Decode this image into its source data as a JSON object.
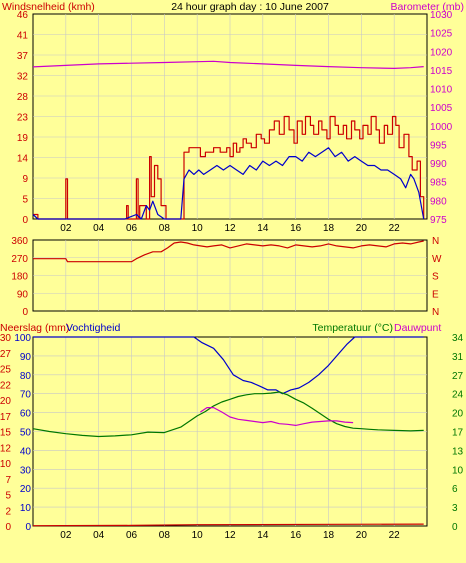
{
  "colors": {
    "bg": "#ffff99",
    "frame": "#000000",
    "grid": "#c8c8c8",
    "red": "#cc0000",
    "magenta": "#cc00cc",
    "blue": "#0000cc",
    "green": "#007700"
  },
  "chart_data": [
    {
      "type": "line",
      "title": "24 hour graph day : 10 June 2007",
      "left_axis_label": "Windsnelheid (kmh)",
      "right_axis_label": "Barometer (mb)",
      "x_ticks": [
        "02",
        "04",
        "06",
        "08",
        "10",
        "12",
        "14",
        "16",
        "18",
        "20",
        "22"
      ],
      "x_range": [
        0,
        24
      ],
      "left_range": [
        0,
        46
      ],
      "left_ticks": [
        "0",
        "5",
        "9",
        "14",
        "19",
        "23",
        "28",
        "32",
        "37",
        "41",
        "46"
      ],
      "right_range": [
        975,
        1030
      ],
      "right_ticks": [
        "975",
        "980",
        "985",
        "990",
        "995",
        "1000",
        "1005",
        "1010",
        "1015",
        "1020",
        "1025",
        "1030"
      ],
      "series": [
        {
          "axis": "left",
          "style": "step",
          "x": [
            0,
            0.3,
            1.9,
            2.0,
            2.1,
            5.6,
            5.7,
            5.8,
            6.1,
            6.3,
            6.4,
            6.5,
            6.9,
            7.1,
            7.2,
            7.4,
            7.6,
            7.8,
            8.1,
            8.6,
            9.0,
            9.2,
            9.5,
            10.0,
            10.2,
            10.5,
            11.0,
            11.4,
            11.8,
            12.0,
            12.2,
            12.4,
            12.6,
            12.8,
            13.0,
            13.3,
            13.6,
            13.9,
            14.1,
            14.4,
            14.7,
            15.0,
            15.3,
            15.6,
            15.9,
            16.1,
            16.4,
            16.6,
            16.9,
            17.1,
            17.4,
            17.6,
            17.9,
            18.1,
            18.4,
            18.6,
            18.9,
            19.1,
            19.4,
            19.6,
            19.9,
            20.1,
            20.4,
            20.6,
            20.9,
            21.1,
            21.4,
            21.6,
            21.9,
            22.1,
            22.3,
            22.6,
            22.9,
            23.1,
            23.4,
            23.6,
            23.8
          ],
          "y": [
            1,
            0,
            0,
            9,
            0,
            0,
            3,
            0,
            0,
            9,
            0,
            3,
            0,
            14,
            5,
            12,
            9,
            3,
            0,
            0,
            0,
            15,
            16,
            16,
            14,
            15,
            16,
            15,
            16,
            14,
            17,
            15,
            16,
            18,
            17,
            16,
            19,
            18,
            17,
            20,
            22,
            19,
            23,
            20,
            17,
            22,
            19,
            23,
            21,
            19,
            22,
            20,
            18,
            23,
            21,
            19,
            21,
            18,
            22,
            20,
            18,
            21,
            19,
            23,
            20,
            17,
            21,
            19,
            23,
            21,
            16,
            19,
            14,
            11,
            13,
            5,
            0
          ]
        },
        {
          "axis": "left",
          "style": "line",
          "x": [
            0,
            0.3,
            5.6,
            6.3,
            6.6,
            6.9,
            7.1,
            7.3,
            7.6,
            8.0,
            8.7,
            9.0,
            9.2,
            9.5,
            9.8,
            10.1,
            10.4,
            10.8,
            11.2,
            11.6,
            12.0,
            12.4,
            12.8,
            13.2,
            13.6,
            14.0,
            14.4,
            14.8,
            15.2,
            15.6,
            16.0,
            16.4,
            16.8,
            17.2,
            17.6,
            18.0,
            18.4,
            18.8,
            19.2,
            19.6,
            20.0,
            20.4,
            20.8,
            21.2,
            21.6,
            22.0,
            22.4,
            22.7,
            23.0,
            23.2,
            23.5,
            23.8
          ],
          "y": [
            1,
            0,
            0,
            1,
            0,
            3,
            2,
            4,
            1,
            0,
            0,
            0,
            9,
            11,
            10,
            11,
            10,
            11,
            12,
            11,
            12,
            11,
            10,
            12,
            11,
            13,
            12,
            13,
            12,
            14,
            14,
            13,
            15,
            14,
            15,
            16,
            14,
            15,
            13,
            14,
            13,
            12,
            12,
            11,
            11,
            10,
            9,
            7,
            10,
            9,
            6,
            0
          ]
        },
        {
          "axis": "right",
          "style": "line",
          "x": [
            0,
            2,
            4,
            6,
            8,
            10,
            11,
            12,
            14,
            16,
            18,
            20,
            22,
            23,
            23.8
          ],
          "y": [
            1015.8,
            1016.2,
            1016.6,
            1016.8,
            1017.0,
            1017.2,
            1017.3,
            1017.0,
            1016.6,
            1016.2,
            1015.9,
            1015.6,
            1015.4,
            1015.6,
            1015.9
          ]
        }
      ]
    },
    {
      "type": "line",
      "title": "",
      "left_range": [
        0,
        360
      ],
      "left_ticks": [
        "0",
        "90",
        "180",
        "270",
        "360"
      ],
      "right_ticks": [
        "N",
        "E",
        "S",
        "W",
        "N"
      ],
      "series": [
        {
          "axis": "left",
          "style": "line",
          "x": [
            0,
            2.0,
            2.1,
            4.0,
            5.0,
            6.0,
            6.3,
            6.8,
            7.3,
            7.8,
            8.2,
            8.6,
            9.0,
            9.4,
            9.8,
            10.2,
            10.6,
            11.0,
            11.5,
            12.0,
            12.5,
            13.0,
            13.5,
            14.0,
            14.5,
            15.0,
            15.5,
            16.0,
            16.5,
            17.0,
            17.5,
            18.0,
            18.5,
            19.0,
            19.5,
            20.0,
            20.5,
            21.0,
            21.5,
            22.0,
            22.5,
            23.0,
            23.5,
            23.8
          ],
          "y": [
            265,
            265,
            250,
            250,
            250,
            250,
            265,
            285,
            300,
            300,
            320,
            345,
            350,
            345,
            335,
            330,
            325,
            330,
            335,
            320,
            330,
            340,
            335,
            330,
            335,
            330,
            320,
            335,
            330,
            325,
            330,
            340,
            330,
            325,
            320,
            330,
            335,
            330,
            325,
            340,
            345,
            340,
            350,
            355
          ]
        }
      ]
    },
    {
      "type": "line",
      "title": "",
      "left_axis_label_1": "Neerslag (mm)",
      "left_axis_label_2": "Vochtigheid",
      "right_axis_label_1": "Temperatuur (°C)",
      "right_axis_label_2": "Dauwpunt",
      "x_ticks": [
        "02",
        "04",
        "06",
        "08",
        "10",
        "12",
        "14",
        "16",
        "18",
        "20",
        "22"
      ],
      "left_outer_range": [
        0,
        30
      ],
      "left_outer_ticks": [
        "0",
        "2",
        "5",
        "7",
        "10",
        "12",
        "15",
        "17",
        "20",
        "22",
        "25",
        "27",
        "30"
      ],
      "left_inner_range": [
        0,
        100
      ],
      "left_inner_ticks": [
        "0",
        "10",
        "20",
        "30",
        "40",
        "50",
        "60",
        "70",
        "80",
        "90",
        "100"
      ],
      "right_range": [
        0,
        34
      ],
      "right_ticks": [
        "0",
        "3",
        "6",
        "10",
        "13",
        "17",
        "20",
        "24",
        "27",
        "31",
        "34"
      ],
      "series": [
        {
          "axis": "humidity",
          "style": "line",
          "x": [
            0,
            9.8,
            10.3,
            11.0,
            11.6,
            12.2,
            12.8,
            13.3,
            13.8,
            14.3,
            14.8,
            15.2,
            15.7,
            16.2,
            16.8,
            17.4,
            18.0,
            18.6,
            19.1,
            19.6,
            21.0,
            22.0,
            23.0,
            23.8
          ],
          "y": [
            100,
            100,
            97,
            94,
            88,
            80,
            77,
            76,
            74,
            72,
            72,
            70,
            72,
            73,
            76,
            80,
            85,
            91,
            96,
            100,
            100,
            100,
            100,
            100
          ]
        },
        {
          "axis": "temp",
          "style": "line",
          "x": [
            0,
            1,
            2,
            3,
            4,
            5,
            6,
            7,
            8,
            9,
            9.5,
            10,
            10.5,
            11,
            11.5,
            12,
            12.5,
            13,
            13.5,
            14,
            14.5,
            15,
            15.5,
            16,
            16.5,
            17,
            17.5,
            18,
            18.5,
            19,
            19.5,
            20,
            20.5,
            21,
            22,
            23,
            23.8
          ],
          "y": [
            17.5,
            17.0,
            16.6,
            16.3,
            16.1,
            16.2,
            16.4,
            16.9,
            16.8,
            17.8,
            18.8,
            19.8,
            20.6,
            21.6,
            22.3,
            22.8,
            23.3,
            23.6,
            23.8,
            23.8,
            23.9,
            24.1,
            23.6,
            22.8,
            22.1,
            21.2,
            20.2,
            19.2,
            18.4,
            17.9,
            17.6,
            17.5,
            17.4,
            17.3,
            17.2,
            17.1,
            17.2
          ]
        },
        {
          "axis": "temp",
          "style": "line",
          "x": [
            10.2,
            10.6,
            11.0,
            11.5,
            12.0,
            12.5,
            13.0,
            13.5,
            14.0,
            14.5,
            15.0,
            15.5,
            16.0,
            16.5,
            17.0,
            17.5,
            18.0,
            18.5,
            19.0,
            19.5
          ],
          "y": [
            20.5,
            21.3,
            21.3,
            20.5,
            19.6,
            19.2,
            19.0,
            18.8,
            18.6,
            18.8,
            18.4,
            18.3,
            18.1,
            18.4,
            18.7,
            18.8,
            18.9,
            18.9,
            18.7,
            18.6
          ]
        },
        {
          "axis": "rain",
          "style": "line",
          "x": [
            0,
            6,
            10,
            23.8
          ],
          "y": [
            0.05,
            0.1,
            0.2,
            0.3
          ]
        }
      ]
    }
  ]
}
